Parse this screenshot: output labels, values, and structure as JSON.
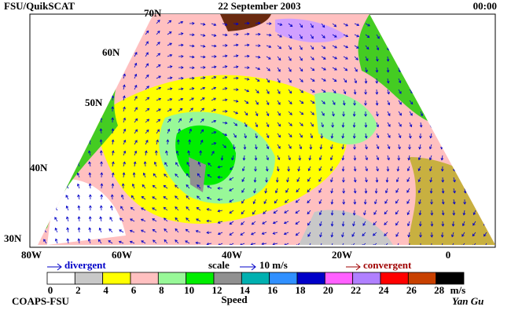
{
  "header": {
    "left": "FSU/QuikSCAT",
    "center": "22 September 2003",
    "right": "00:00"
  },
  "map": {
    "lat_labels": [
      "70N",
      "60N",
      "50N",
      "40N",
      "30N"
    ],
    "lon_labels": [
      "80W",
      "60W",
      "40W",
      "20W",
      "0"
    ]
  },
  "legend": {
    "divergent": "divergent",
    "scale": "scale",
    "scale_value": "10 m/s",
    "convergent": "convergent"
  },
  "colorbar": {
    "colors": [
      "#ffffff",
      "#c8c8c8",
      "#ffff00",
      "#ffc0c0",
      "#98f898",
      "#00ee00",
      "#909090",
      "#00b0b0",
      "#3090ff",
      "#0000c8",
      "#ff60ff",
      "#b080ff",
      "#ff0000",
      "#c84000",
      "#000000"
    ],
    "ticks": [
      0,
      2,
      4,
      6,
      8,
      10,
      12,
      14,
      16,
      18,
      20,
      22,
      24,
      26,
      28
    ],
    "unit": "m/s",
    "title": "Speed"
  },
  "footer": {
    "left": "COAPS-FSU",
    "right": "Yan Gu"
  }
}
